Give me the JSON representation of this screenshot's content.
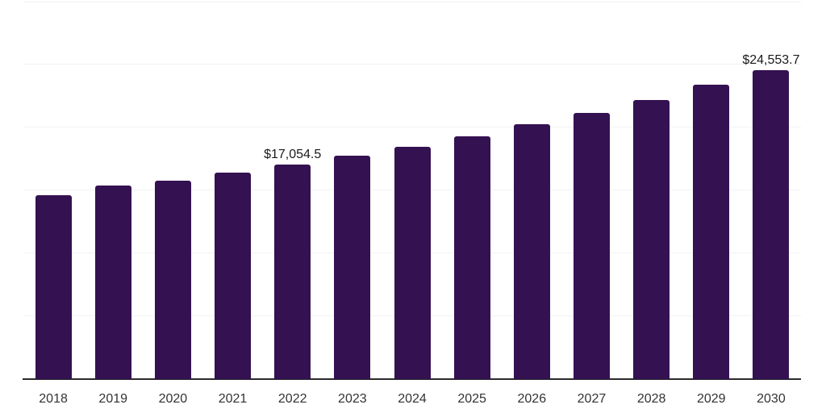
{
  "chart_data": {
    "type": "bar",
    "title": "",
    "xlabel": "",
    "ylabel": "",
    "categories": [
      "2018",
      "2019",
      "2020",
      "2021",
      "2022",
      "2023",
      "2024",
      "2025",
      "2026",
      "2027",
      "2028",
      "2029",
      "2030"
    ],
    "values": [
      14650,
      15400,
      15800,
      16400,
      17054.5,
      17800,
      18450,
      19300,
      20250,
      21150,
      22200,
      23400,
      24553.7
    ],
    "value_labels": [
      "",
      "",
      "",
      "",
      "$17,054.5",
      "",
      "",
      "",
      "",
      "",
      "",
      "",
      "$24,553.7"
    ],
    "ylim": [
      0,
      30000
    ],
    "y_gridlines": [
      5000,
      10000,
      15000,
      20000,
      25000,
      30000
    ],
    "grid": "horizontal",
    "legend_position": "none",
    "y_axis_tick_labels_visible": false,
    "colors": {
      "bar": "#341151",
      "gridline": "#f2f2f2",
      "axis_line": "#2b2b2b",
      "value_label_text": "#1a1a1a",
      "tick_label_text": "#333333",
      "background": "#ffffff"
    }
  }
}
